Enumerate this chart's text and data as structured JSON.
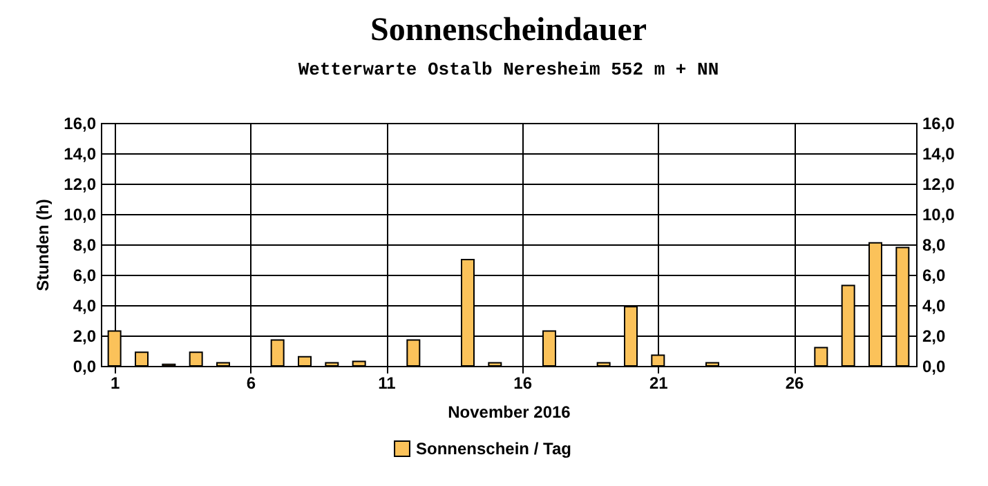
{
  "chart_data": {
    "type": "bar",
    "title": "Sonnenscheindauer",
    "subtitle": "Wetterwarte Ostalb Neresheim 552 m + NN",
    "xlabel": "November 2016",
    "ylabel": "Stunden  (h)",
    "x": [
      1,
      2,
      3,
      4,
      5,
      6,
      7,
      8,
      9,
      10,
      11,
      12,
      13,
      14,
      15,
      16,
      17,
      18,
      19,
      20,
      21,
      22,
      23,
      24,
      25,
      26,
      27,
      28,
      29,
      30
    ],
    "series": [
      {
        "name": "Sonnenschein / Tag",
        "color": "#fbc25a",
        "values": [
          2.3,
          0.9,
          0.1,
          0.9,
          0.2,
          0,
          1.7,
          0.6,
          0.2,
          0.3,
          0,
          1.7,
          0,
          7.0,
          0.2,
          0,
          2.3,
          0,
          0.2,
          3.9,
          0.7,
          0,
          0.2,
          0,
          0,
          0,
          1.2,
          5.3,
          8.1,
          7.8
        ]
      }
    ],
    "xlim": [
      0.5,
      30.5
    ],
    "xticks": [
      1,
      6,
      11,
      16,
      21,
      26
    ],
    "ylim": [
      0,
      16
    ],
    "yticks": [
      {
        "value": 0,
        "label": "0,0"
      },
      {
        "value": 2,
        "label": "2,0"
      },
      {
        "value": 4,
        "label": "4,0"
      },
      {
        "value": 6,
        "label": "6,0"
      },
      {
        "value": 8,
        "label": "8,0"
      },
      {
        "value": 10,
        "label": "10,0"
      },
      {
        "value": 12,
        "label": "12,0"
      },
      {
        "value": 14,
        "label": "14,0"
      },
      {
        "value": 16,
        "label": "16,0"
      }
    ],
    "y2lim": [
      0,
      16
    ],
    "y2ticks": [
      {
        "value": 0,
        "label": "0,0"
      },
      {
        "value": 2,
        "label": "2,0"
      },
      {
        "value": 4,
        "label": "4,0"
      },
      {
        "value": 6,
        "label": "6,0"
      },
      {
        "value": 8,
        "label": "8,0"
      },
      {
        "value": 10,
        "label": "10,0"
      },
      {
        "value": 12,
        "label": "12,0"
      },
      {
        "value": 14,
        "label": "14,0"
      },
      {
        "value": 16,
        "label": "16,0"
      }
    ],
    "grid": true,
    "legend": "bottom"
  }
}
